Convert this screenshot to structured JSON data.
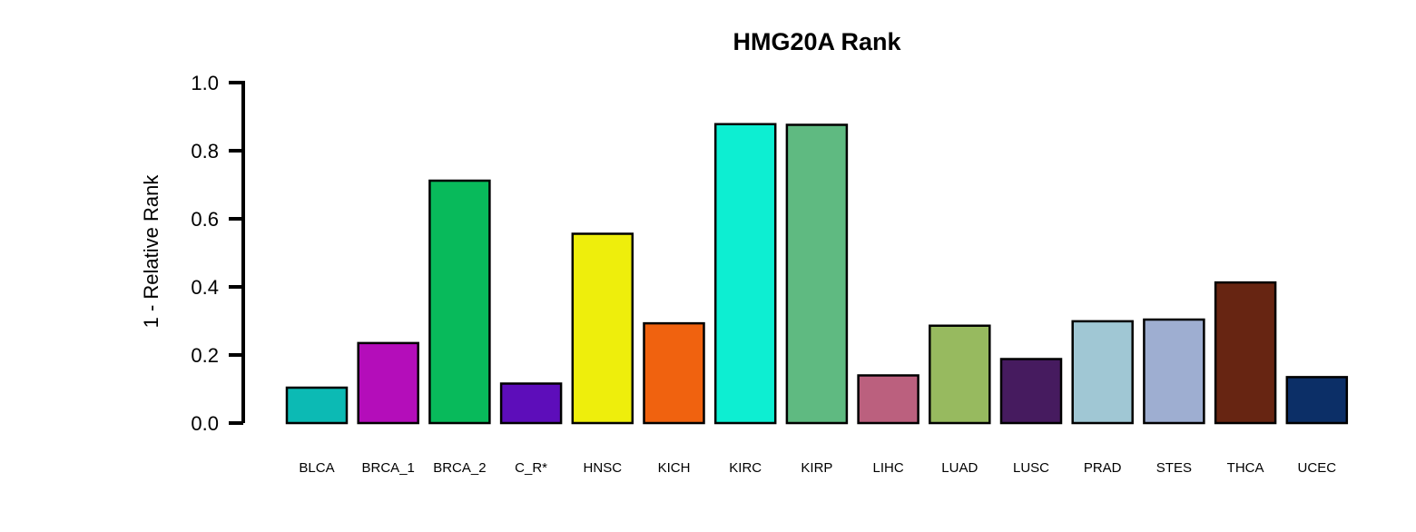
{
  "chart_data": {
    "type": "bar",
    "title": "HMG20A Rank",
    "xlabel": "",
    "ylabel": "1 - Relative Rank",
    "ylim": [
      0,
      1.0
    ],
    "yticks": [
      "0.0",
      "0.2",
      "0.4",
      "0.6",
      "0.8",
      "1.0"
    ],
    "grid": false,
    "categories": [
      "BLCA",
      "BRCA_1",
      "BRCA_2",
      "C_R*",
      "HNSC",
      "KICH",
      "KIRC",
      "KIRP",
      "LIHC",
      "LUAD",
      "LUSC",
      "PRAD",
      "STES",
      "THCA",
      "UCEC"
    ],
    "values": [
      0.104,
      0.235,
      0.712,
      0.116,
      0.556,
      0.293,
      0.878,
      0.876,
      0.14,
      0.286,
      0.188,
      0.299,
      0.304,
      0.413,
      0.135
    ],
    "colors": [
      "#0CBAB4",
      "#B40DBA",
      "#08BA5B",
      "#5D0DBA",
      "#EEEE0C",
      "#F0620F",
      "#0DEED2",
      "#5FBA81",
      "#BB607E",
      "#97BA5F",
      "#461B5F",
      "#A0C7D4",
      "#9EAED1",
      "#672512",
      "#0C2F67"
    ]
  }
}
